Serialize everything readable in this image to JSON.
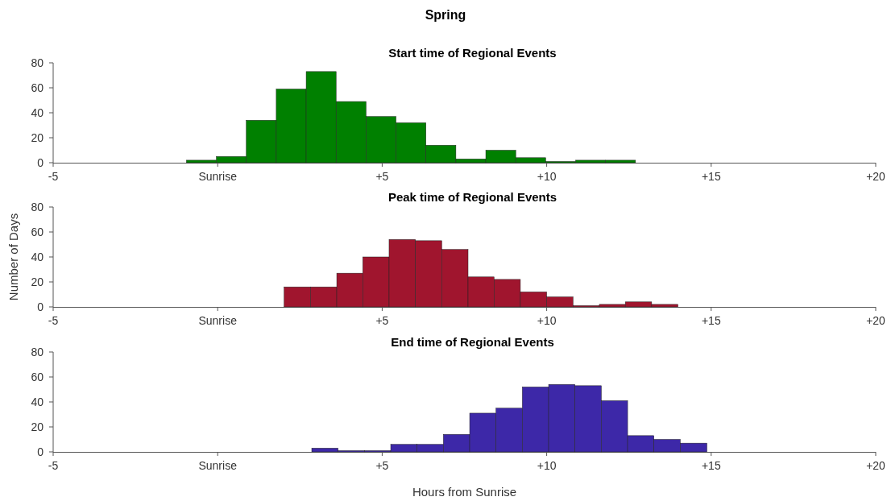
{
  "chart_data": [
    {
      "type": "histogram",
      "title": "Start time of Regional Events",
      "annotations": [
        "Spring"
      ],
      "color": "#008000",
      "bins": [
        -0.95,
        -0.04,
        0.87,
        1.78,
        2.69,
        3.6,
        4.51,
        5.42,
        6.33,
        7.24,
        8.15,
        9.06,
        9.97,
        10.88,
        11.79,
        12.7
      ],
      "values": [
        2,
        5,
        34,
        59,
        73,
        49,
        37,
        32,
        14,
        3,
        10,
        4,
        1,
        2,
        2
      ],
      "xlim": [
        -5,
        20
      ],
      "xticks": [
        {
          "value": -5,
          "label": "-5"
        },
        {
          "value": 0,
          "label": "Sunrise"
        },
        {
          "value": 5,
          "label": "+5"
        },
        {
          "value": 10,
          "label": "+10"
        },
        {
          "value": 15,
          "label": "+15"
        },
        {
          "value": 20,
          "label": "+20"
        }
      ],
      "ylim": [
        0,
        80
      ],
      "yticks": [
        0,
        20,
        40,
        60,
        80
      ],
      "grid": false
    },
    {
      "type": "histogram",
      "title": "Peak time of Regional Events",
      "ylabel": "Number of Days",
      "color": "#a0152e",
      "bins": [
        2.02,
        2.82,
        3.62,
        4.41,
        5.21,
        6.01,
        6.81,
        7.61,
        8.4,
        9.2,
        10.0,
        10.8,
        11.6,
        12.39,
        13.19,
        13.99
      ],
      "values": [
        16,
        16,
        27,
        40,
        54,
        53,
        46,
        24,
        22,
        12,
        8,
        1,
        2,
        4,
        2
      ],
      "xlim": [
        -5,
        20
      ],
      "xticks": [
        {
          "value": -5,
          "label": "-5"
        },
        {
          "value": 0,
          "label": "Sunrise"
        },
        {
          "value": 5,
          "label": "+5"
        },
        {
          "value": 10,
          "label": "+10"
        },
        {
          "value": 15,
          "label": "+15"
        },
        {
          "value": 20,
          "label": "+20"
        }
      ],
      "ylim": [
        0,
        80
      ],
      "yticks": [
        0,
        20,
        40,
        60,
        80
      ],
      "grid": false
    },
    {
      "type": "histogram",
      "title": "End time of Regional Events",
      "xlabel": "Hours from Sunrise",
      "color": "#3d28a8",
      "bins": [
        2.86,
        3.66,
        4.46,
        5.26,
        6.06,
        6.86,
        7.66,
        8.46,
        9.26,
        10.06,
        10.86,
        11.66,
        12.46,
        13.26,
        14.06,
        14.87
      ],
      "values": [
        3,
        1,
        1,
        6,
        6,
        14,
        31,
        35,
        52,
        54,
        53,
        41,
        13,
        10,
        7
      ],
      "xlim": [
        -5,
        20
      ],
      "xticks": [
        {
          "value": -5,
          "label": "-5"
        },
        {
          "value": 0,
          "label": "Sunrise"
        },
        {
          "value": 5,
          "label": "+5"
        },
        {
          "value": 10,
          "label": "+10"
        },
        {
          "value": 15,
          "label": "+15"
        },
        {
          "value": 20,
          "label": "+20"
        }
      ],
      "ylim": [
        0,
        80
      ],
      "yticks": [
        0,
        20,
        40,
        60,
        80
      ],
      "grid": false
    }
  ]
}
